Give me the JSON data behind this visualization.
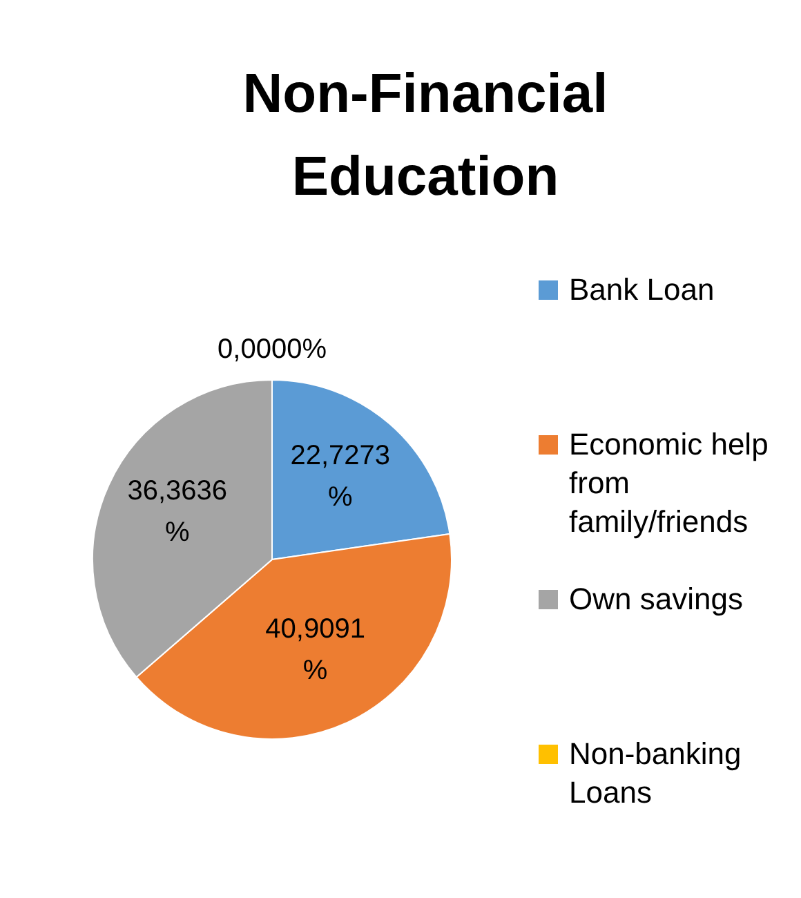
{
  "chart_data": {
    "type": "pie",
    "title": "Non-Financial Education",
    "categories": [
      "Bank Loan",
      "Economic help from family/friends",
      "Own savings",
      "Non-banking Loans"
    ],
    "values": [
      22.7273,
      40.9091,
      36.3636,
      0
    ],
    "colors": [
      "#5b9bd5",
      "#ed7d31",
      "#a5a5a5",
      "#ffc000"
    ],
    "value_labels": [
      "22,7273%",
      "40,9091%",
      "36,3636%",
      "0,0000%"
    ],
    "legend": "right"
  }
}
